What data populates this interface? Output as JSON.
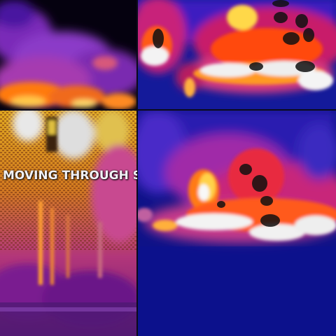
{
  "video": {
    "caption": "MOVING THROUGH STRUC"
  },
  "panels": [
    {
      "id": "top-left",
      "scene": "thermal-smoke-fire"
    },
    {
      "id": "top-right",
      "scene": "thermal-fire-line"
    },
    {
      "id": "bottom-left",
      "scene": "thermal-structure-wall"
    },
    {
      "id": "bottom-right",
      "scene": "thermal-fire-line-closeup"
    }
  ],
  "palette": {
    "cold": "#0e1288",
    "cool": "#3a1fd0",
    "warm": "#c02aa8",
    "hot": "#ff6a00",
    "hotter": "#ffd24a",
    "hottest": "#f4f4f4"
  }
}
